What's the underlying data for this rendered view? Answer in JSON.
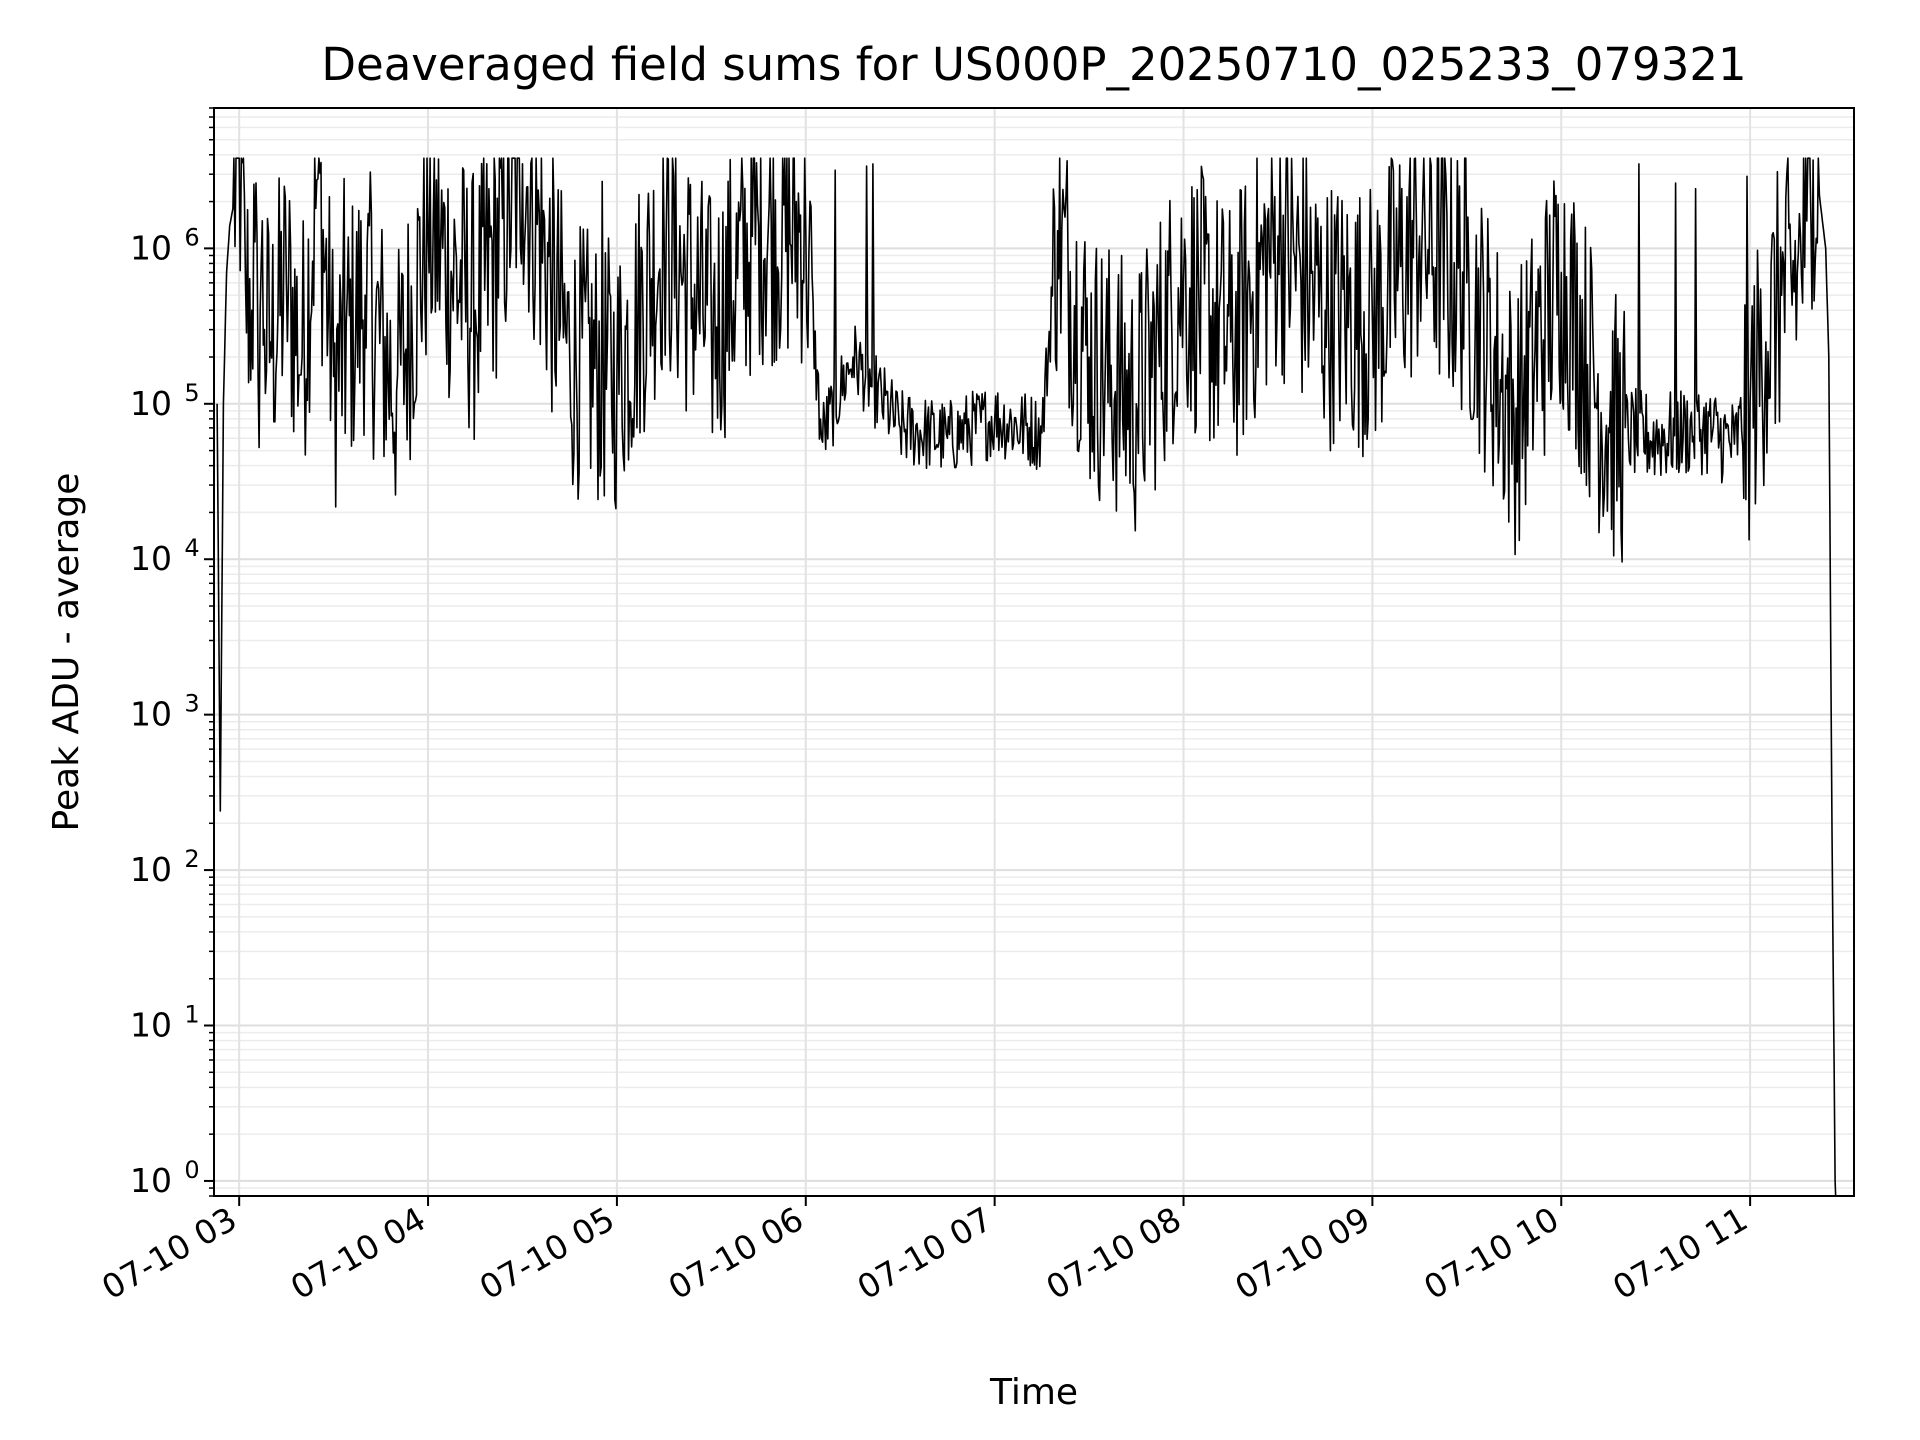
{
  "chart_data": {
    "type": "line",
    "title": "Deaveraged field sums for US000P_20250710_025233_079321",
    "xlabel": "Time",
    "ylabel": "Peak ADU - average",
    "yscale": "log",
    "ylim": [
      0.8,
      8000000
    ],
    "xlim": [
      "2025-07-10 02:52",
      "2025-07-10 11:33"
    ],
    "grid": "major and minor, light gray",
    "x_ticks": [
      {
        "label": "07-10 03",
        "value": "2025-07-10 03:00"
      },
      {
        "label": "07-10 04",
        "value": "2025-07-10 04:00"
      },
      {
        "label": "07-10 05",
        "value": "2025-07-10 05:00"
      },
      {
        "label": "07-10 06",
        "value": "2025-07-10 06:00"
      },
      {
        "label": "07-10 07",
        "value": "2025-07-10 07:00"
      },
      {
        "label": "07-10 08",
        "value": "2025-07-10 08:00"
      },
      {
        "label": "07-10 09",
        "value": "2025-07-10 09:00"
      },
      {
        "label": "07-10 10",
        "value": "2025-07-10 10:00"
      },
      {
        "label": "07-10 11",
        "value": "2025-07-10 11:00"
      }
    ],
    "y_ticks": [
      {
        "base": "10",
        "exp": "0",
        "value": 1
      },
      {
        "base": "10",
        "exp": "1",
        "value": 10
      },
      {
        "base": "10",
        "exp": "2",
        "value": 100
      },
      {
        "base": "10",
        "exp": "3",
        "value": 1000
      },
      {
        "base": "10",
        "exp": "4",
        "value": 10000
      },
      {
        "base": "10",
        "exp": "5",
        "value": 100000
      },
      {
        "base": "10",
        "exp": "6",
        "value": 1000000
      }
    ],
    "series": [
      {
        "color": "#000000",
        "x": [
          "2025-07-10 02:53",
          "2025-07-10 02:54",
          "2025-07-10 02:55",
          "2025-07-10 02:56",
          "2025-07-10 02:57",
          "2025-07-10 02:58",
          "2025-07-10 03:00",
          "2025-07-10 03:02",
          "2025-07-10 03:04",
          "2025-07-10 03:05",
          "2025-07-10 03:06",
          "2025-07-10 03:07",
          "2025-07-10 03:08",
          "2025-07-10 03:10",
          "2025-07-10 03:15",
          "2025-07-10 03:20",
          "2025-07-10 03:25",
          "2025-07-10 03:30",
          "2025-07-10 03:40",
          "2025-07-10 03:50",
          "2025-07-10 04:00",
          "2025-07-10 04:15",
          "2025-07-10 04:30",
          "2025-07-10 04:45",
          "2025-07-10 05:00",
          "2025-07-10 05:15",
          "2025-07-10 05:30",
          "2025-07-10 05:45",
          "2025-07-10 06:00",
          "2025-07-10 06:05",
          "2025-07-10 06:15",
          "2025-07-10 06:30",
          "2025-07-10 06:45",
          "2025-07-10 07:00",
          "2025-07-10 07:15",
          "2025-07-10 07:20",
          "2025-07-10 07:30",
          "2025-07-10 07:45",
          "2025-07-10 08:00",
          "2025-07-10 08:15",
          "2025-07-10 08:30",
          "2025-07-10 08:45",
          "2025-07-10 09:00",
          "2025-07-10 09:15",
          "2025-07-10 09:30",
          "2025-07-10 09:45",
          "2025-07-10 10:00",
          "2025-07-10 10:15",
          "2025-07-10 10:30",
          "2025-07-10 10:45",
          "2025-07-10 10:55",
          "2025-07-10 11:00",
          "2025-07-10 11:05",
          "2025-07-10 11:10",
          "2025-07-10 11:15",
          "2025-07-10 11:18",
          "2025-07-10 11:20",
          "2025-07-10 11:22",
          "2025-07-10 11:24",
          "2025-07-10 11:25",
          "2025-07-10 11:26",
          "2025-07-10 11:27"
        ],
        "y": [
          100000,
          240,
          100000,
          700000,
          1400000,
          1800000,
          3800000,
          600000,
          400000,
          1100000,
          150000,
          800000,
          300000,
          250000,
          600000,
          200000,
          2800000,
          150000,
          500000,
          120000,
          1300000,
          400000,
          3500000,
          200000,
          150000,
          1200000,
          300000,
          1400000,
          1300000,
          60000,
          200000,
          70000,
          60000,
          80000,
          65000,
          1300000,
          200000,
          100000,
          600000,
          250000,
          1200000,
          400000,
          350000,
          1200000,
          600000,
          80000,
          700000,
          70000,
          60000,
          70000,
          55000,
          100000,
          250000,
          500000,
          700000,
          1500000,
          3700000,
          2200000,
          1000000,
          200000,
          180,
          1
        ]
      }
    ]
  }
}
